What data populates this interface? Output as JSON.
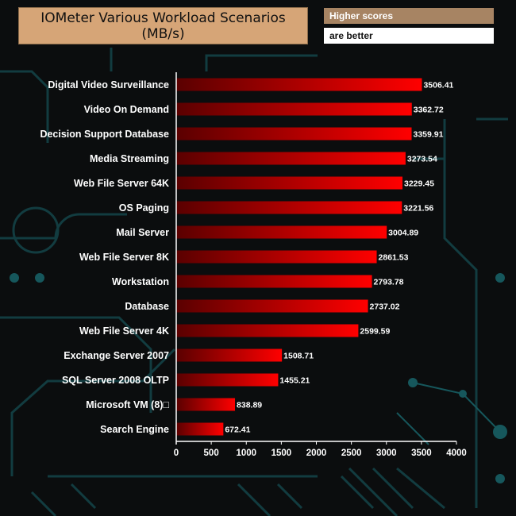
{
  "header": {
    "title_line1": "IOMeter Various Workload Scenarios",
    "title_line2": "(MB/s)",
    "note_line1": "Higher scores",
    "note_line2": "are better"
  },
  "colors": {
    "background": "#0b0d0e",
    "circuit": "#123c40",
    "bar_dark": "#5a0000",
    "bar_bright": "#ff0000",
    "title_bg": "#d6a577",
    "note_bg": "#a78463"
  },
  "chart_data": {
    "type": "bar",
    "orientation": "horizontal",
    "title": "IOMeter Various Workload Scenarios (MB/s)",
    "categories": [
      "Digital Video Surveillance",
      "Video On Demand",
      "Decision Support Database",
      "Media Streaming",
      "Web File Server 64K",
      "OS Paging",
      "Mail Server",
      "Web File Server 8K",
      "Workstation",
      "Database",
      "Web File Server 4K",
      "Exchange Server 2007",
      "SQL Server 2008 OLTP",
      "Microsoft VM (8)□",
      "Search Engine"
    ],
    "values": [
      3506.41,
      3362.72,
      3359.91,
      3273.54,
      3229.45,
      3221.56,
      3004.89,
      2861.53,
      2793.78,
      2737.02,
      2599.59,
      1508.71,
      1455.21,
      838.89,
      672.41
    ],
    "value_labels": [
      "3506.41",
      "3362.72",
      "3359.91",
      "3273.54",
      "3229.45",
      "3221.56",
      "3004.89",
      "2861.53",
      "2793.78",
      "2737.02",
      "2599.59",
      "1508.71",
      "1455.21",
      "838.89",
      "672.41"
    ],
    "xlim": [
      0,
      4000
    ],
    "xticks": [
      "0",
      "500",
      "1000",
      "1500",
      "2000",
      "2500",
      "3000",
      "3500",
      "4000"
    ],
    "grid": false,
    "legend": "none"
  }
}
